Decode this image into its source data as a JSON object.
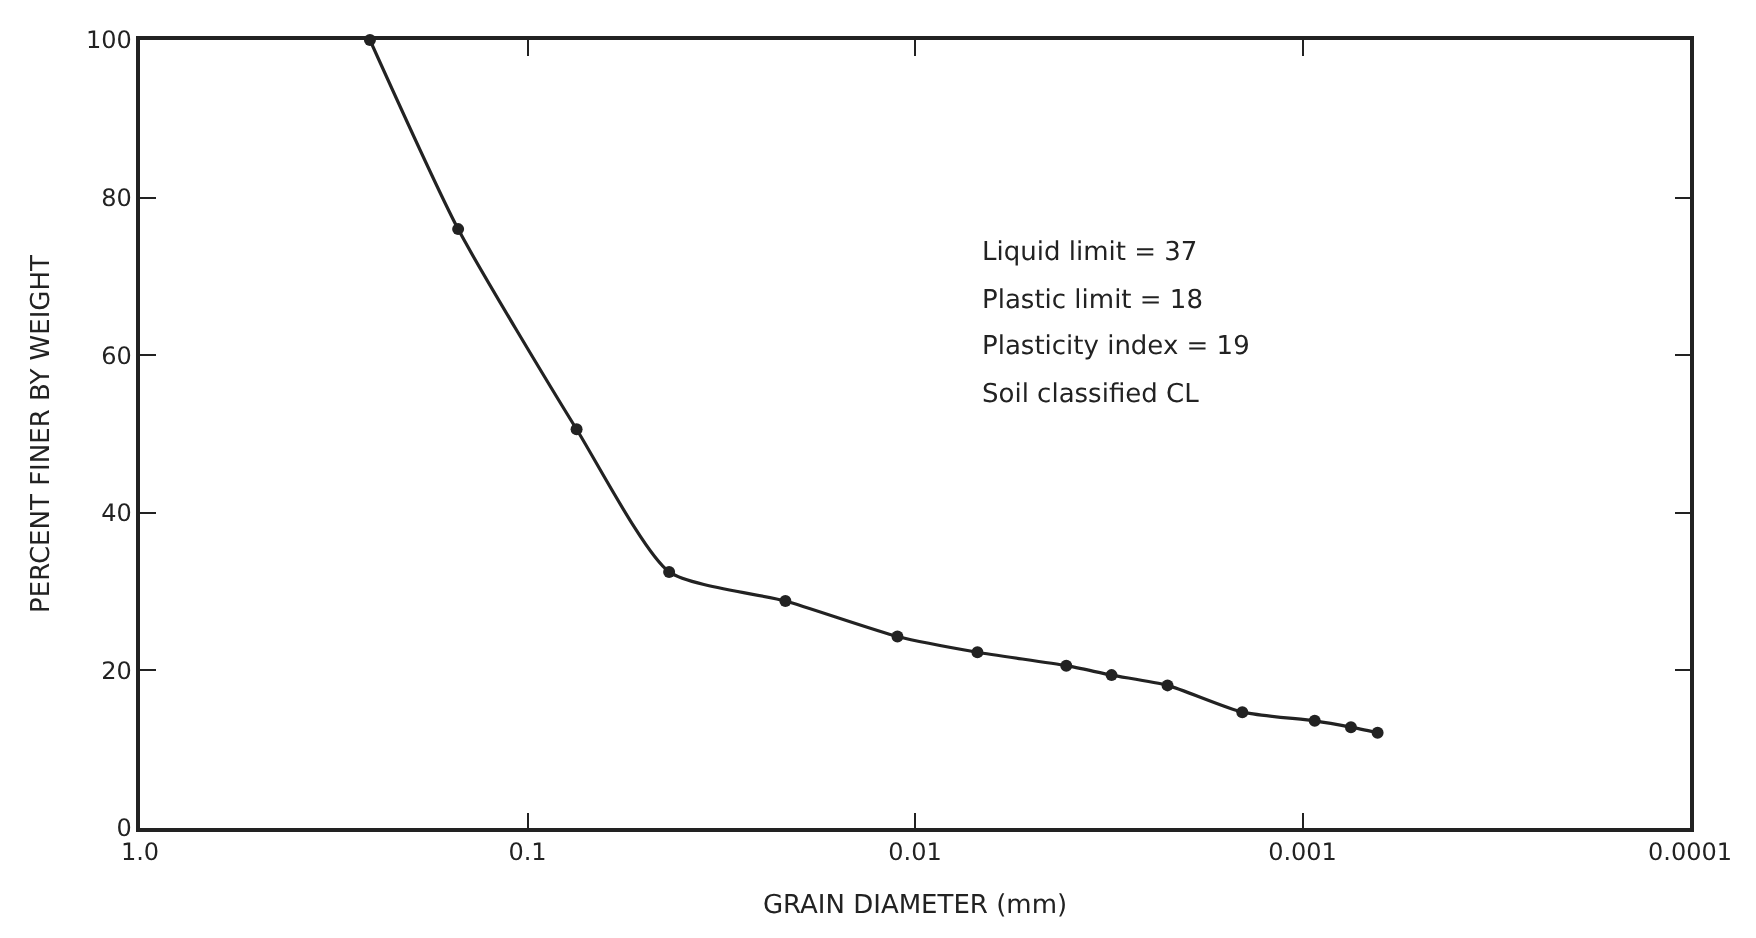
{
  "chart_data": {
    "type": "line",
    "xlabel": "GRAIN DIAMETER (mm)",
    "ylabel": "PERCENT FINER BY WEIGHT",
    "x": [
      0.255,
      0.151,
      0.0747,
      0.0431,
      0.0216,
      0.0111,
      0.0069,
      0.00407,
      0.00311,
      0.00223,
      0.00143,
      0.00093,
      0.00075,
      0.00064
    ],
    "series": [
      {
        "color": "#222222",
        "values": [
          100,
          76,
          50.6,
          32.5,
          28.8,
          24.3,
          22.3,
          20.6,
          19.4,
          18.1,
          14.7,
          13.6,
          12.8,
          12.1
        ]
      }
    ],
    "log": "x",
    "xlim": [
      1,
      0.0001
    ],
    "xticks": [
      {
        "value": 1,
        "label": "1.0"
      },
      0.1,
      0.01,
      0.001,
      0.0001
    ],
    "ylim": [
      0,
      100
    ],
    "yticks": [
      0,
      20,
      40,
      60,
      80,
      100
    ],
    "marker": "circle",
    "line_style": "solid",
    "annotations": [
      "Liquid limit = 37",
      "Plastic limit = 18",
      "Plasticity index = 19",
      "Soil classified CL"
    ]
  }
}
